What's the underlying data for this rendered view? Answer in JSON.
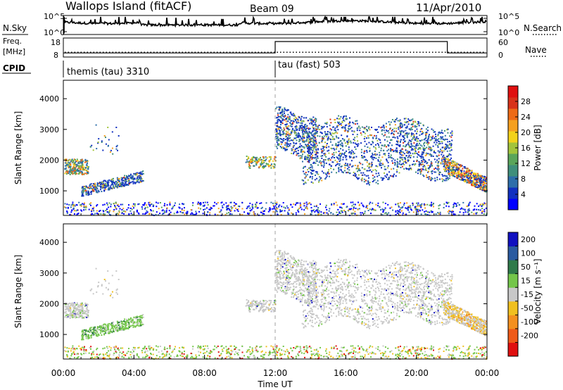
{
  "header": {
    "station": "Wallops Island (fitACF)",
    "beam": "Beam 09",
    "date": "11/Apr/2010"
  },
  "top_panel_labels": {
    "nsky": "N.Sky",
    "nsearch": "N.Search",
    "freq": "Freq.",
    "freq_unit": "[MHz]",
    "nave": "Nave",
    "cpid": "CPID"
  },
  "chart_data": [
    {
      "type": "line",
      "name": "noise",
      "series": [
        {
          "name": "N.Sky",
          "values": "dense (~1 per minute)"
        }
      ],
      "y_left_ticks": [
        "10^5",
        "10^0"
      ],
      "y_right_ticks": [
        "10^5",
        "10^0"
      ],
      "notes": "N.Sky solid line near 10^2; N.Search dotted (not drawn separately)"
    },
    {
      "type": "line",
      "name": "frequency-nave",
      "freq_ticks": [
        "18",
        "8"
      ],
      "nave_ticks": [
        "60",
        "0"
      ],
      "freq_mhz": 10.5,
      "nave_segments": [
        {
          "x0": 0,
          "x1": 12,
          "value": 13
        },
        {
          "x0": 12,
          "x1": 21.75,
          "value": 49
        },
        {
          "x0": 21.75,
          "x1": 24,
          "value": 13
        }
      ]
    },
    {
      "type": "table",
      "name": "cpid",
      "segments": [
        {
          "start": 0,
          "label": "themis (tau) 3310"
        },
        {
          "start": 12,
          "label": "tau (fast) 503"
        }
      ]
    },
    {
      "type": "heatmap",
      "name": "power",
      "title": "Power [dB]",
      "xlabel": "",
      "ylabel": "Slant Range [km]",
      "xlim": [
        0,
        24
      ],
      "ylim": [
        200,
        4600
      ],
      "y_ticks": [
        1000,
        2000,
        3000,
        4000
      ],
      "colorbar_ticks": [
        4,
        8,
        12,
        16,
        20,
        24,
        28
      ],
      "colorbar_range": [
        0,
        32
      ],
      "colors": [
        "#0000ff",
        "#1030c0",
        "#2d6eaa",
        "#3f8f7b",
        "#5aa55a",
        "#a2c43b",
        "#f2d21a",
        "#f5a020",
        "#ee6a16",
        "#d8321a",
        "#e01010"
      ]
    },
    {
      "type": "heatmap",
      "name": "velocity",
      "title": "Velocity [m s⁻¹]",
      "xlabel": "Time UT",
      "ylabel": "Slant Range [km]",
      "xlim": [
        0,
        24
      ],
      "ylim": [
        200,
        4600
      ],
      "y_ticks": [
        1000,
        2000,
        3000,
        4000
      ],
      "x_ticks": [
        "00:00",
        "04:00",
        "08:00",
        "12:00",
        "16:00",
        "20:00",
        "00:00"
      ],
      "colorbar_ticks": [
        "200",
        "100",
        "50",
        "15",
        "-15",
        "-50",
        "-100",
        "-200"
      ],
      "colors": [
        "#1010c0",
        "#2a5aa0",
        "#2f7a4a",
        "#74c64a",
        "#c8c8c8",
        "#f0c020",
        "#f39020",
        "#ef5a18",
        "#e01010"
      ]
    }
  ]
}
